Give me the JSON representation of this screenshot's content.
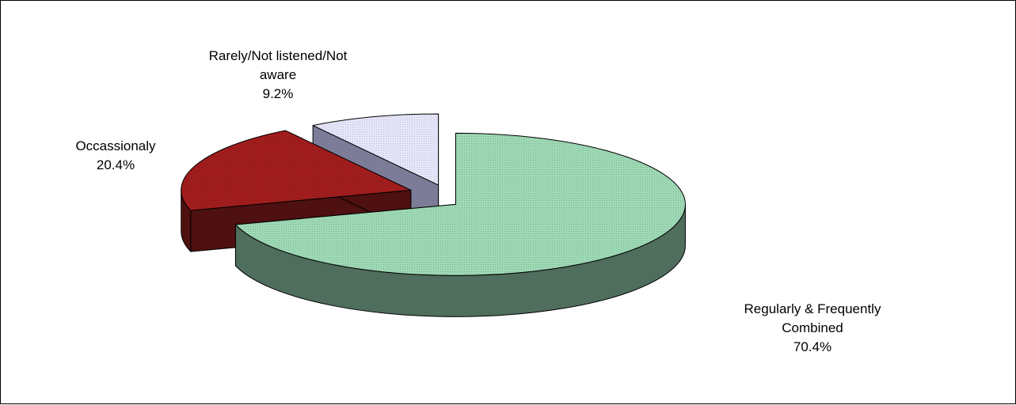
{
  "chart_data": {
    "type": "pie",
    "three_d": true,
    "exploded": true,
    "slices": [
      {
        "label_lines": [
          "Regularly & Frequently",
          "Combined"
        ],
        "percent_text": "70.4%",
        "value": 70.4,
        "top_color": "#9ed9b5",
        "side_color": "#4f6e5d"
      },
      {
        "label_lines": [
          "Occassionaly"
        ],
        "percent_text": "20.4%",
        "value": 20.4,
        "top_color": "#a21d1d",
        "side_color": "#4e1010"
      },
      {
        "label_lines": [
          "Rarely/Not listened/Not",
          "aware"
        ],
        "percent_text": "9.2%",
        "value": 9.2,
        "top_color": "#e6e6fb",
        "side_color": "#7d7c98"
      }
    ]
  }
}
